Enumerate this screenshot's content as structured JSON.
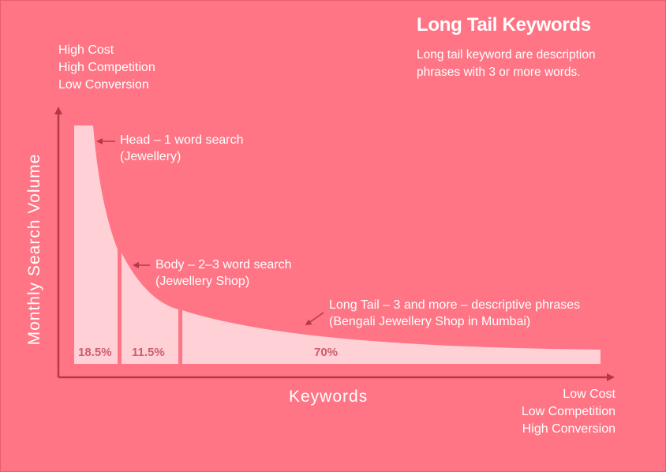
{
  "title": "Long Tail Keywords",
  "description": [
    "Long tail keyword are description",
    "phrases with 3 or more words."
  ],
  "top_left": [
    "High Cost",
    "High Competition",
    "Low Conversion"
  ],
  "bottom_right": [
    "Low Cost",
    "Low Competition",
    "High Conversion"
  ],
  "y_axis_label": "Monthly Search Volume",
  "x_axis_label": "Keywords",
  "segments": [
    {
      "label": "Head – 1 word search",
      "example": "(Jewellery)",
      "percent": "18.5%"
    },
    {
      "label": "Body – 2–3 word search",
      "example": "(Jewellery Shop)",
      "percent": "11.5%"
    },
    {
      "label": "Long Tail – 3 and more – descriptive phrases",
      "example": "(Bengali Jewellery Shop in Mumbai)",
      "percent": "70%"
    }
  ],
  "colors": {
    "background": "#ff7585",
    "curve_fill": "#ffd0d6",
    "axis": "#b5384a",
    "white": "#ffffff",
    "percent_text": "#cc5e6e"
  }
}
